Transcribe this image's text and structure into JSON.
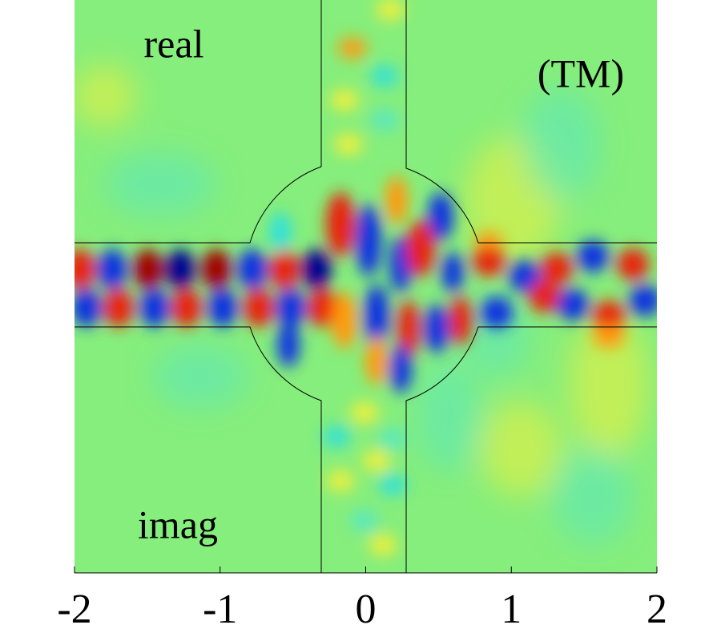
{
  "chart_data": {
    "type": "field",
    "xlim": [
      -2,
      2
    ],
    "xticks": [
      -2,
      -1,
      0,
      1,
      2
    ],
    "annotations": [
      "real",
      "(TM)",
      "imag"
    ]
  }
}
